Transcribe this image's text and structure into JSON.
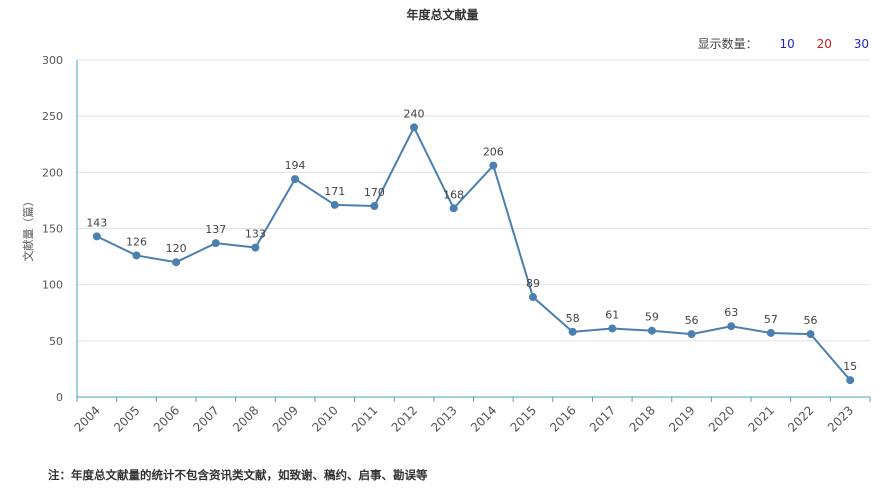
{
  "chart_data": {
    "type": "line",
    "title": "年度总文献量",
    "ylabel": "文献量（篇）",
    "xlabel": "",
    "categories": [
      "2004",
      "2005",
      "2006",
      "2007",
      "2008",
      "2009",
      "2010",
      "2011",
      "2012",
      "2013",
      "2014",
      "2015",
      "2016",
      "2017",
      "2018",
      "2019",
      "2020",
      "2021",
      "2022",
      "2023"
    ],
    "values": [
      143,
      126,
      120,
      137,
      133,
      194,
      171,
      170,
      240,
      168,
      206,
      89,
      58,
      61,
      59,
      56,
      63,
      57,
      56,
      15
    ],
    "ylim": [
      0,
      300
    ],
    "yticks": [
      0,
      50,
      100,
      150,
      200,
      250,
      300
    ],
    "grid": true,
    "line_color": "#4a7fb0"
  },
  "controls": {
    "label": "显示数量：",
    "options": [
      "10",
      "20",
      "30"
    ]
  },
  "footnote": "注：年度总文献量的统计不包含资讯类文献，如致谢、稿约、启事、勘误等"
}
